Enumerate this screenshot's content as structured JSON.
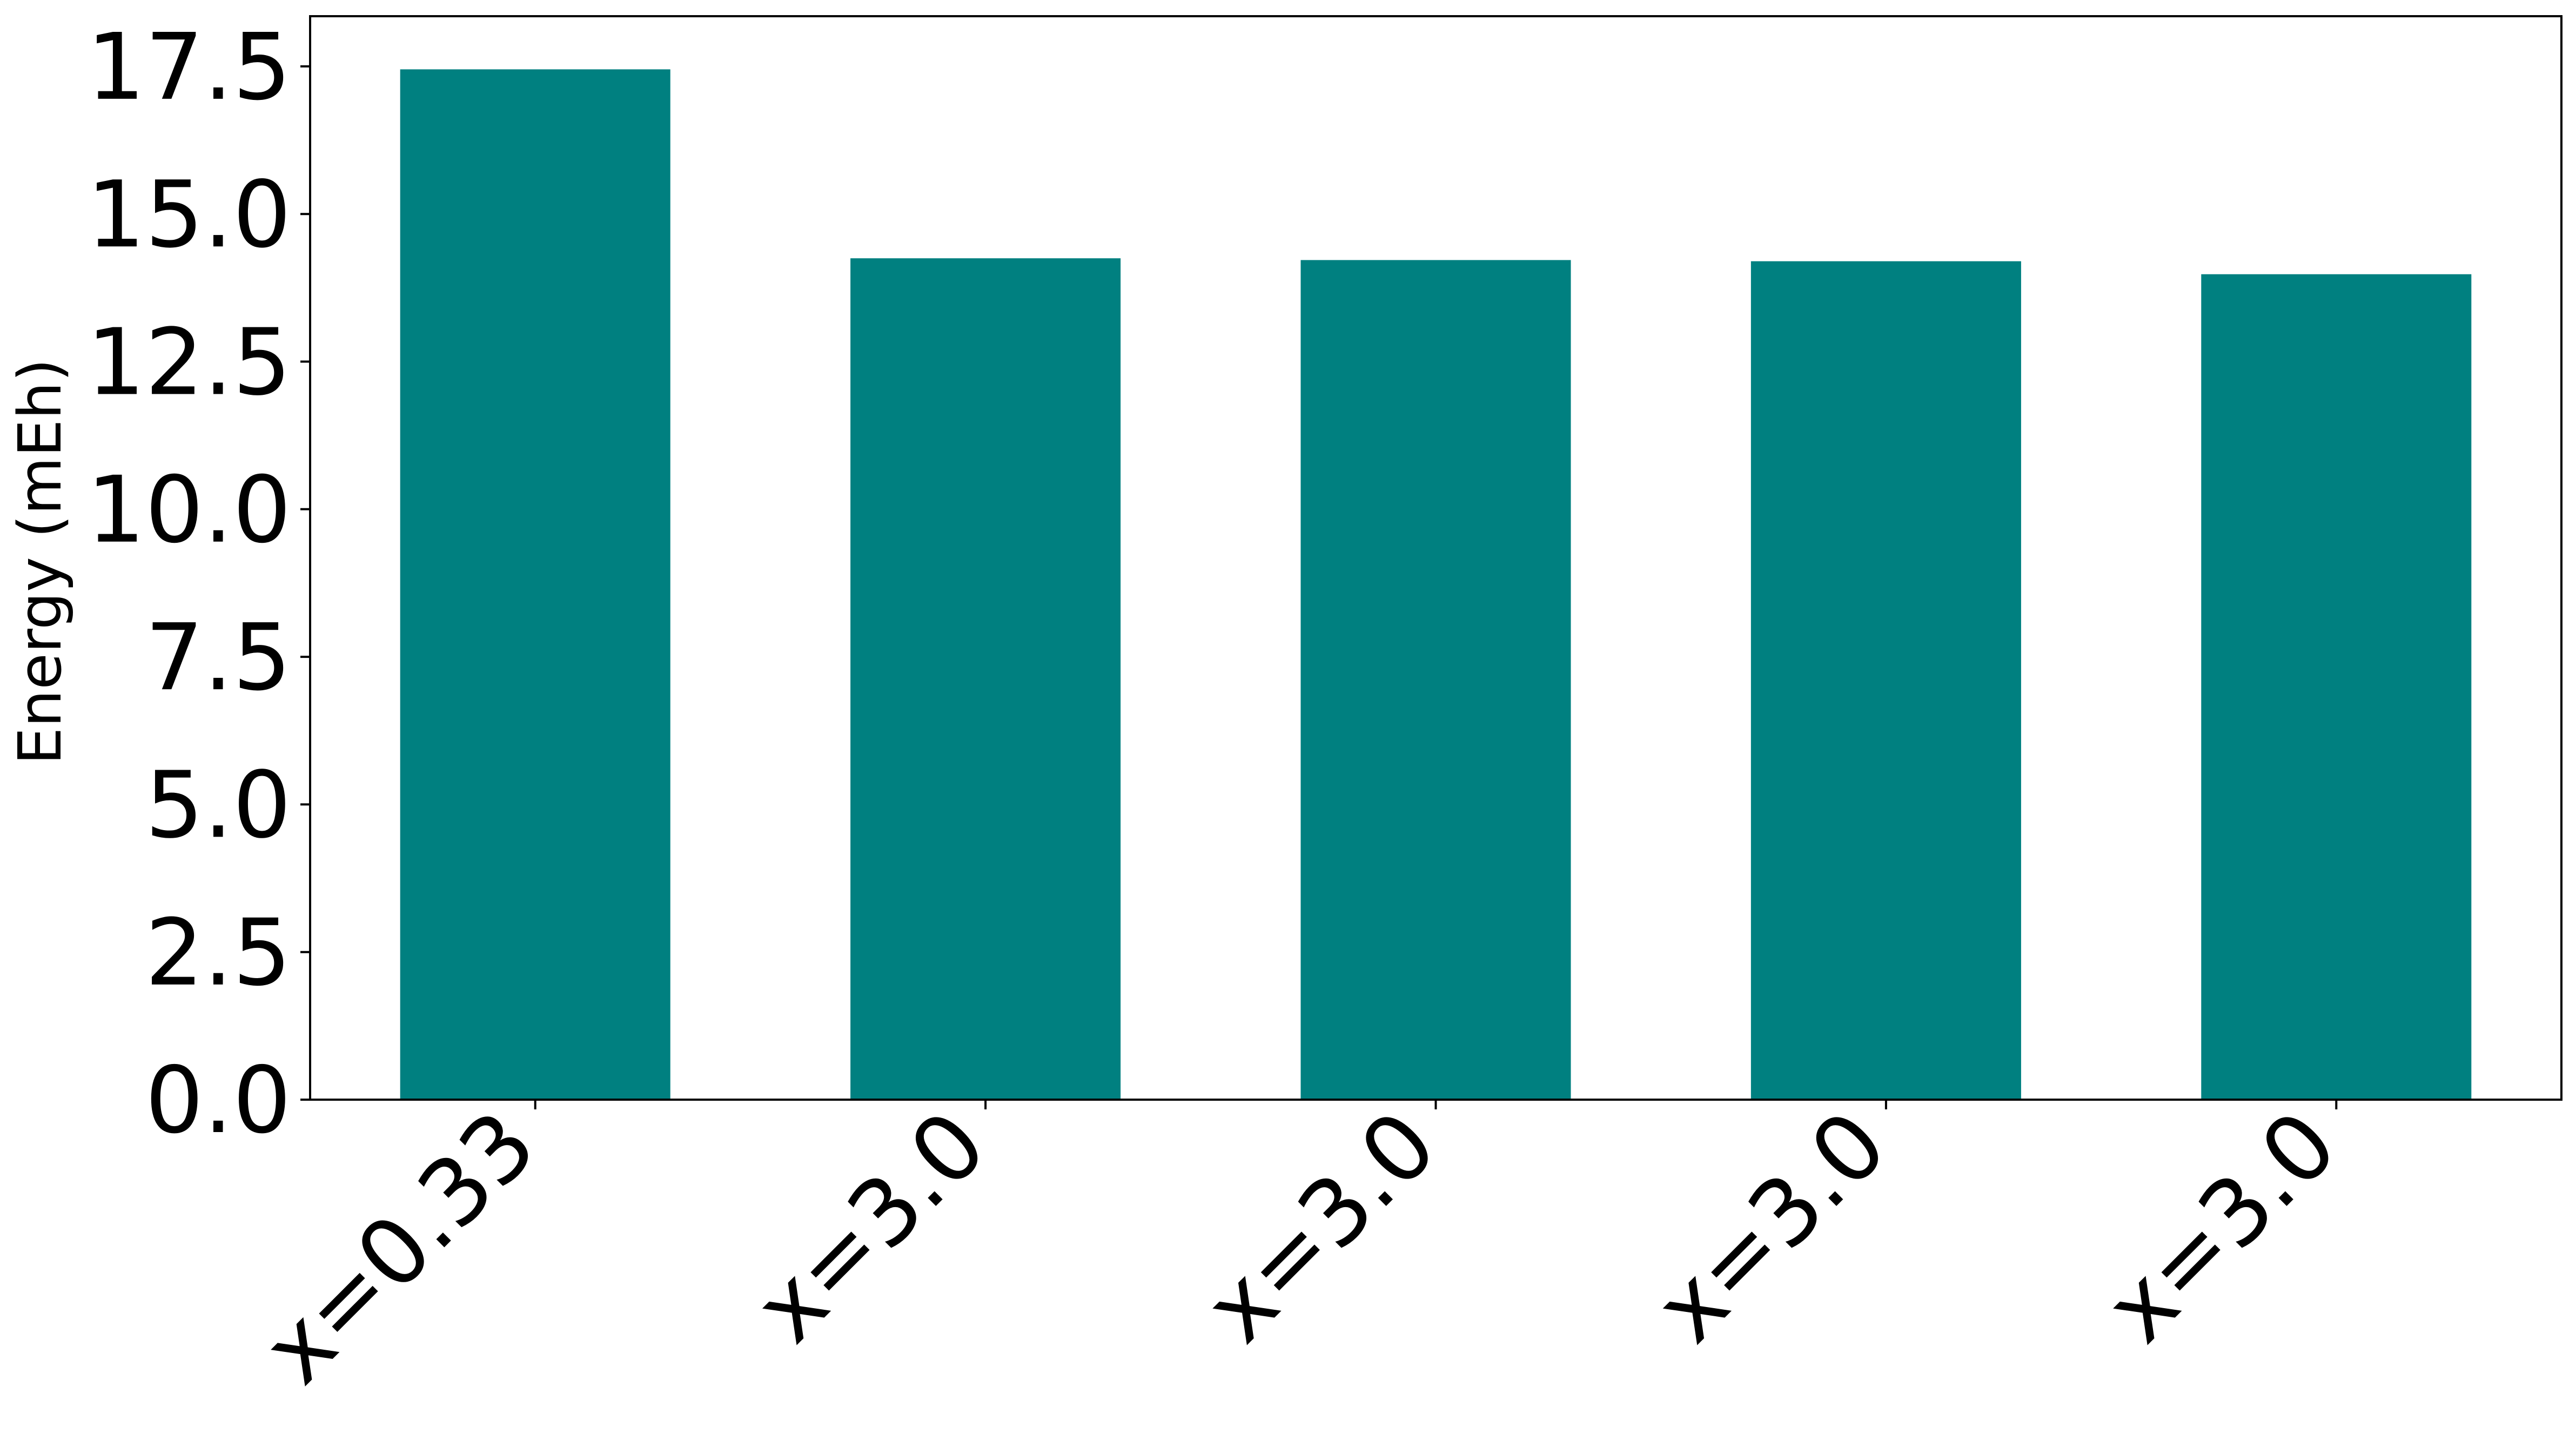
{
  "chart_data": {
    "type": "bar",
    "categories": [
      "x=0.33",
      "x=3.0",
      "x=3.0",
      "x=3.0",
      "x=3.0"
    ],
    "values": [
      17.45,
      14.25,
      14.22,
      14.2,
      13.98
    ],
    "title": "",
    "xlabel": "",
    "ylabel": "Energy (mEh)",
    "ylim": [
      0,
      18.35
    ],
    "yticks": [
      "0.0",
      "2.5",
      "5.0",
      "7.5",
      "10.0",
      "12.5",
      "15.0",
      "17.5"
    ],
    "ytick_values": [
      0,
      2.5,
      5,
      7.5,
      10,
      12.5,
      15,
      17.5
    ],
    "bar_color": "#008080",
    "grid": false,
    "legend": "none"
  }
}
